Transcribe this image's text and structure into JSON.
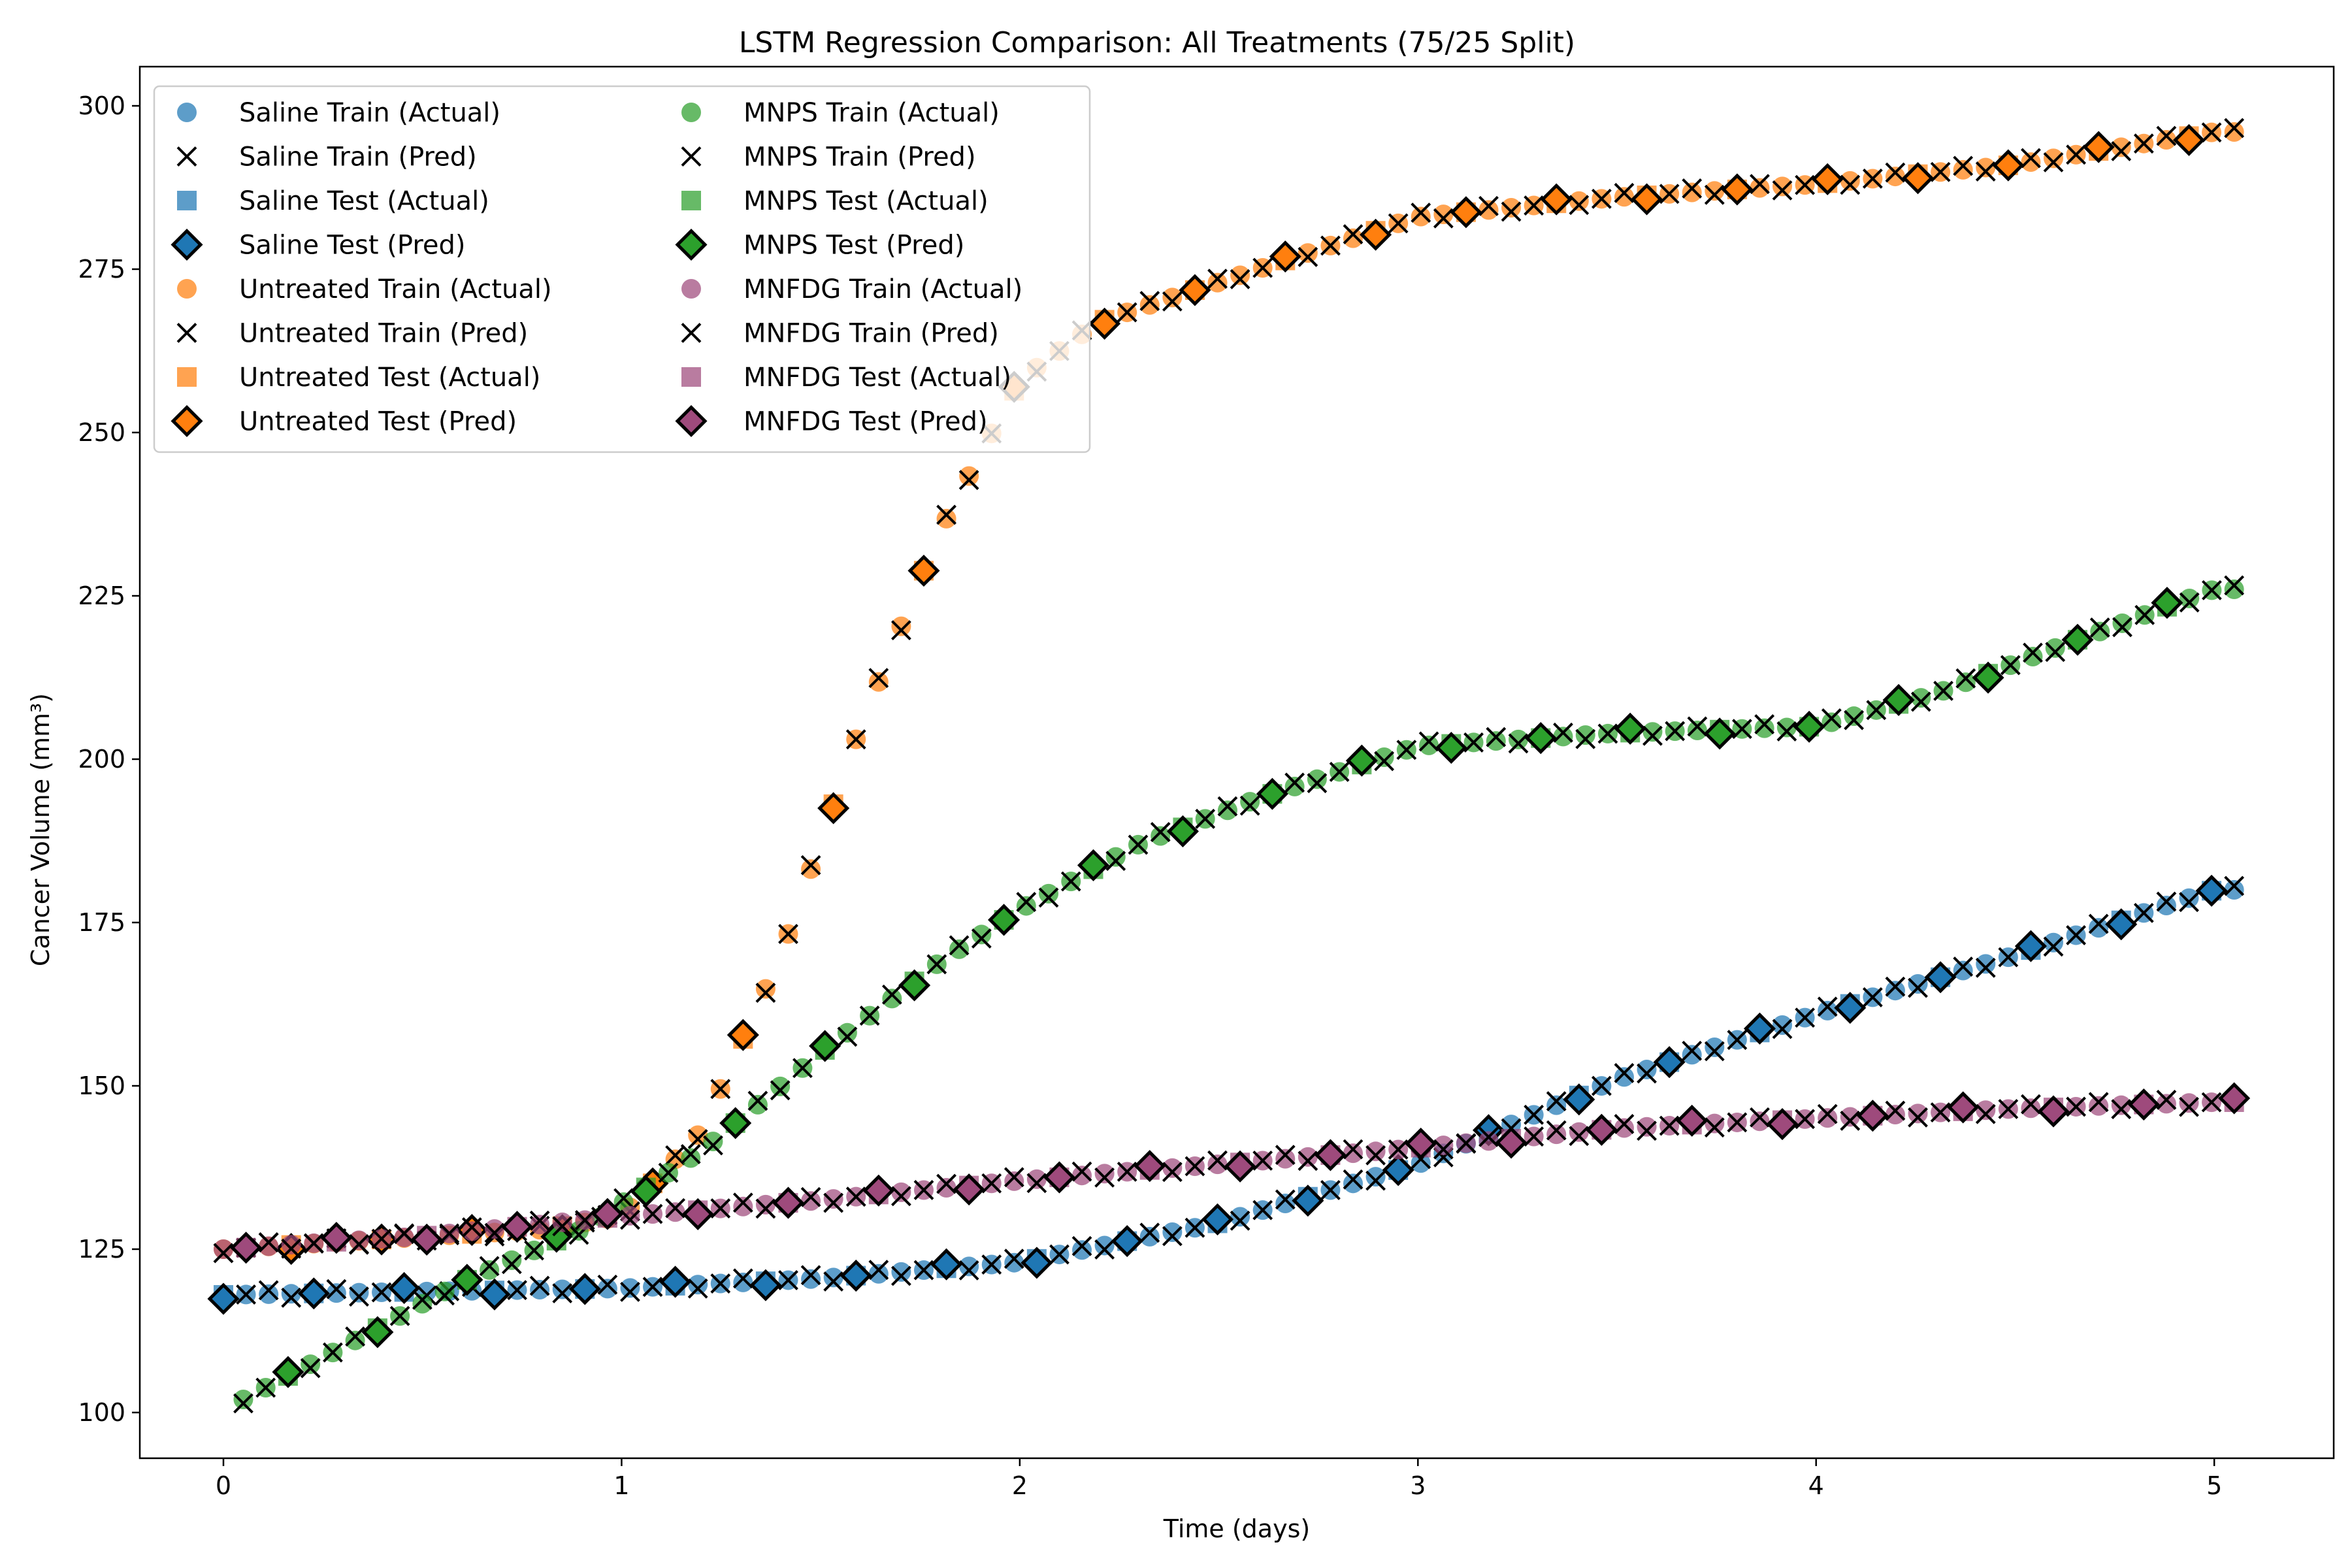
{
  "chart_data": {
    "type": "scatter",
    "title": "LSTM Regression Comparison: All Treatments (75/25 Split)",
    "xlabel": "Time (days)",
    "ylabel": "Cancer Volume (mm³)",
    "xlim": [
      -0.21,
      5.3
    ],
    "ylim": [
      93,
      306
    ],
    "xticks": [
      0,
      1,
      2,
      3,
      4,
      5
    ],
    "yticks": [
      100,
      125,
      150,
      175,
      200,
      225,
      250,
      275,
      300
    ],
    "grid": false,
    "legend_position": "top-left",
    "legend_columns": 2,
    "treatments": [
      {
        "name": "Saline",
        "color": "#1f77b4",
        "legend": [
          "Saline Train (Actual)",
          "Saline Train (Pred)",
          "Saline Test (Actual)",
          "Saline Test (Pred)"
        ],
        "curve_x": [
          0,
          0.5,
          1,
          1.5,
          2,
          2.5,
          3,
          3.5,
          4,
          4.5,
          5
        ],
        "curve_y": [
          118,
          118.5,
          119,
          120.5,
          123,
          129,
          138,
          151,
          161,
          170,
          180
        ]
      },
      {
        "name": "Untreated",
        "color": "#ff7f0e",
        "legend": [
          "Untreated Train (Actual)",
          "Untreated Train (Pred)",
          "Untreated Test (Actual)",
          "Untreated Test (Pred)"
        ],
        "curve_x": [
          0,
          0.4,
          0.8,
          1.0,
          1.2,
          1.4,
          1.6,
          1.8,
          2.0,
          2.2,
          2.5,
          3.0,
          3.5,
          4.0,
          4.5,
          5.0
        ],
        "curve_y": [
          125,
          126.5,
          128,
          130,
          143,
          170,
          205,
          235,
          258,
          267,
          273,
          283,
          286,
          288,
          291,
          296
        ]
      },
      {
        "name": "MNPS",
        "color": "#2ca02c",
        "legend": [
          "MNPS Train (Actual)",
          "MNPS Train (Pred)",
          "MNPS Test (Actual)",
          "MNPS Test (Pred)"
        ],
        "curve_x": [
          0.05,
          0.3,
          0.6,
          0.9,
          1.2,
          1.5,
          1.8,
          2.0,
          2.3,
          2.6,
          3.0,
          3.5,
          4.0,
          4.3,
          4.6,
          5.0
        ],
        "curve_y": [
          102,
          110,
          120,
          128,
          140,
          155,
          169,
          177,
          187,
          194,
          202,
          204,
          205,
          210,
          217,
          226
        ]
      },
      {
        "name": "MNFDG",
        "color": "#9e4a7c",
        "legend": [
          "MNFDG Train (Actual)",
          "MNFDG Train (Pred)",
          "MNFDG Test (Actual)",
          "MNFDG Test (Pred)"
        ],
        "curve_x": [
          0,
          0.5,
          1.0,
          1.5,
          2.0,
          2.5,
          3.0,
          3.5,
          4.0,
          4.5,
          5.0
        ],
        "curve_y": [
          125,
          127,
          130,
          132.5,
          135.5,
          138,
          140.5,
          143.5,
          145,
          146.5,
          147.5
        ]
      }
    ]
  }
}
